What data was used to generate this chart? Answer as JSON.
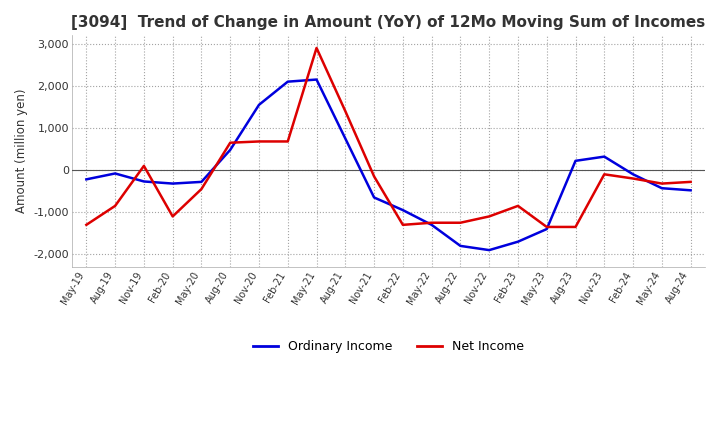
{
  "title": "[3094]  Trend of Change in Amount (YoY) of 12Mo Moving Sum of Incomes",
  "ylabel": "Amount (million yen)",
  "ylim": [
    -2300,
    3200
  ],
  "yticks": [
    -2000,
    -1000,
    0,
    1000,
    2000,
    3000
  ],
  "background_color": "#ffffff",
  "grid_color": "#999999",
  "ordinary_income_color": "#0000dd",
  "net_income_color": "#dd0000",
  "x_labels": [
    "May-19",
    "Aug-19",
    "Nov-19",
    "Feb-20",
    "May-20",
    "Aug-20",
    "Nov-20",
    "Feb-21",
    "May-21",
    "Aug-21",
    "Nov-21",
    "Feb-22",
    "May-22",
    "Aug-22",
    "Nov-22",
    "Feb-23",
    "May-23",
    "Aug-23",
    "Nov-23",
    "Feb-24",
    "May-24",
    "Aug-24"
  ],
  "ordinary_income": [
    -220,
    -80,
    -270,
    -320,
    -280,
    480,
    1550,
    2100,
    2150,
    750,
    -650,
    -950,
    -1300,
    -1800,
    -1900,
    -1700,
    -1400,
    220,
    320,
    -100,
    -430,
    -480
  ],
  "net_income": [
    -1300,
    -850,
    100,
    -1100,
    -450,
    650,
    680,
    680,
    2900,
    1400,
    -150,
    -1300,
    -1250,
    -1250,
    -1100,
    -850,
    -1350,
    -1350,
    -100,
    -200,
    -320,
    -280
  ]
}
